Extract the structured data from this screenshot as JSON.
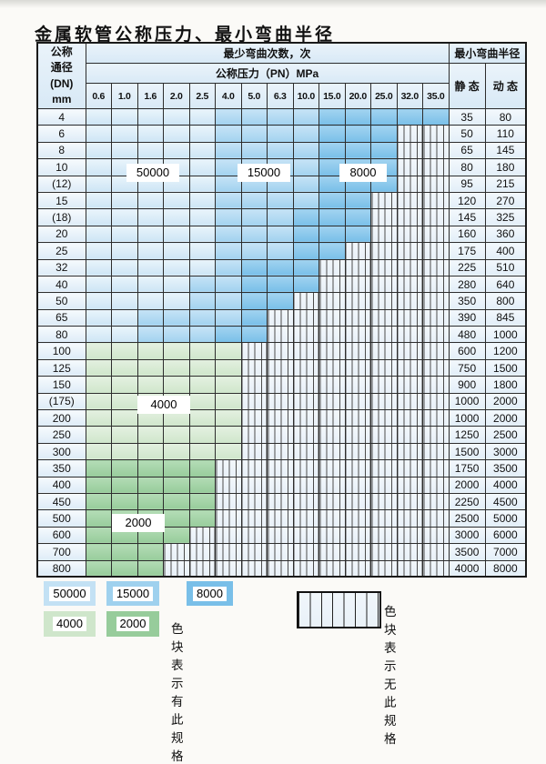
{
  "title": "金属软管公称压力、最小弯曲半径",
  "table": {
    "dn_header_lines": [
      "公称",
      "通径",
      "(DN)",
      "mm"
    ],
    "bend_cycles_header": "最少弯曲次数，次",
    "pressure_header": "公称压力（PN）MPa",
    "radius_header": "最小弯曲半径",
    "static_header": "静 态",
    "dynamic_header": "动 态",
    "pressures": [
      "0.6",
      "1.0",
      "1.6",
      "2.0",
      "2.5",
      "4.0",
      "5.0",
      "6.3",
      "10.0",
      "15.0",
      "20.0",
      "25.0",
      "32.0",
      "35.0"
    ],
    "band_colors": {
      "c50000": "#cde5f5",
      "c15000": "#a2d2ef",
      "c8000": "#79bfe8",
      "c4000": "#cfe6cb",
      "c2000": "#97cc9b"
    },
    "rows": [
      {
        "dn": "4",
        "bands": [
          [
            "c50000",
            5
          ],
          [
            "c15000",
            4
          ],
          [
            "c8000",
            5
          ]
        ],
        "static": "35",
        "dynamic": "80"
      },
      {
        "dn": "6",
        "bands": [
          [
            "c50000",
            5
          ],
          [
            "c15000",
            4
          ],
          [
            "c8000",
            3
          ]
        ],
        "static": "50",
        "dynamic": "110"
      },
      {
        "dn": "8",
        "bands": [
          [
            "c50000",
            5
          ],
          [
            "c15000",
            4
          ],
          [
            "c8000",
            3
          ]
        ],
        "static": "65",
        "dynamic": "145"
      },
      {
        "dn": "10",
        "bands": [
          [
            "c50000",
            5
          ],
          [
            "c15000",
            4
          ],
          [
            "c8000",
            3
          ]
        ],
        "static": "80",
        "dynamic": "180"
      },
      {
        "dn": "(12)",
        "bands": [
          [
            "c50000",
            5
          ],
          [
            "c15000",
            4
          ],
          [
            "c8000",
            3
          ]
        ],
        "static": "95",
        "dynamic": "215"
      },
      {
        "dn": "15",
        "bands": [
          [
            "c50000",
            5
          ],
          [
            "c15000",
            4
          ],
          [
            "c8000",
            2
          ]
        ],
        "static": "120",
        "dynamic": "270"
      },
      {
        "dn": "(18)",
        "bands": [
          [
            "c50000",
            5
          ],
          [
            "c15000",
            3
          ],
          [
            "c8000",
            3
          ]
        ],
        "static": "145",
        "dynamic": "325"
      },
      {
        "dn": "20",
        "bands": [
          [
            "c50000",
            5
          ],
          [
            "c15000",
            3
          ],
          [
            "c8000",
            3
          ]
        ],
        "static": "160",
        "dynamic": "360"
      },
      {
        "dn": "25",
        "bands": [
          [
            "c50000",
            5
          ],
          [
            "c15000",
            3
          ],
          [
            "c8000",
            2
          ]
        ],
        "static": "175",
        "dynamic": "400"
      },
      {
        "dn": "32",
        "bands": [
          [
            "c50000",
            5
          ],
          [
            "c15000",
            1
          ],
          [
            "c8000",
            3
          ]
        ],
        "static": "225",
        "dynamic": "510"
      },
      {
        "dn": "40",
        "bands": [
          [
            "c50000",
            4
          ],
          [
            "c15000",
            2
          ],
          [
            "c8000",
            3
          ]
        ],
        "static": "280",
        "dynamic": "640"
      },
      {
        "dn": "50",
        "bands": [
          [
            "c50000",
            4
          ],
          [
            "c15000",
            2
          ],
          [
            "c8000",
            2
          ]
        ],
        "static": "350",
        "dynamic": "800"
      },
      {
        "dn": "65",
        "bands": [
          [
            "c50000",
            2
          ],
          [
            "c15000",
            4
          ],
          [
            "c8000",
            1
          ]
        ],
        "static": "390",
        "dynamic": "845"
      },
      {
        "dn": "80",
        "bands": [
          [
            "c50000",
            2
          ],
          [
            "c15000",
            3
          ],
          [
            "c8000",
            2
          ]
        ],
        "static": "480",
        "dynamic": "1000"
      },
      {
        "dn": "100",
        "bands": [
          [
            "c4000",
            6
          ]
        ],
        "static": "600",
        "dynamic": "1200"
      },
      {
        "dn": "125",
        "bands": [
          [
            "c4000",
            6
          ]
        ],
        "static": "750",
        "dynamic": "1500"
      },
      {
        "dn": "150",
        "bands": [
          [
            "c4000",
            6
          ]
        ],
        "static": "900",
        "dynamic": "1800"
      },
      {
        "dn": "(175)",
        "bands": [
          [
            "c4000",
            6
          ]
        ],
        "static": "1000",
        "dynamic": "2000"
      },
      {
        "dn": "200",
        "bands": [
          [
            "c4000",
            6
          ]
        ],
        "static": "1000",
        "dynamic": "2000"
      },
      {
        "dn": "250",
        "bands": [
          [
            "c4000",
            6
          ]
        ],
        "static": "1250",
        "dynamic": "2500"
      },
      {
        "dn": "300",
        "bands": [
          [
            "c4000",
            6
          ]
        ],
        "static": "1500",
        "dynamic": "3000"
      },
      {
        "dn": "350",
        "bands": [
          [
            "c2000",
            5
          ]
        ],
        "static": "1750",
        "dynamic": "3500"
      },
      {
        "dn": "400",
        "bands": [
          [
            "c2000",
            5
          ]
        ],
        "static": "2000",
        "dynamic": "4000"
      },
      {
        "dn": "450",
        "bands": [
          [
            "c2000",
            5
          ]
        ],
        "static": "2250",
        "dynamic": "4500"
      },
      {
        "dn": "500",
        "bands": [
          [
            "c2000",
            5
          ]
        ],
        "static": "2500",
        "dynamic": "5000"
      },
      {
        "dn": "600",
        "bands": [
          [
            "c2000",
            4
          ]
        ],
        "static": "3000",
        "dynamic": "6000"
      },
      {
        "dn": "700",
        "bands": [
          [
            "c2000",
            3
          ]
        ],
        "static": "3500",
        "dynamic": "7000"
      },
      {
        "dn": "800",
        "bands": [
          [
            "c2000",
            3
          ]
        ],
        "static": "4000",
        "dynamic": "8000"
      }
    ]
  },
  "overlays": {
    "l50000": "50000",
    "l15000": "15000",
    "l8000": "8000",
    "l4000": "4000",
    "l2000": "2000"
  },
  "legend": {
    "swatches": {
      "s50000": "50000",
      "s15000": "15000",
      "s8000": "8000",
      "s4000": "4000",
      "s2000": "2000"
    },
    "present_note": "色块表示有此规格",
    "absent_note": "色块表示无此规格"
  }
}
